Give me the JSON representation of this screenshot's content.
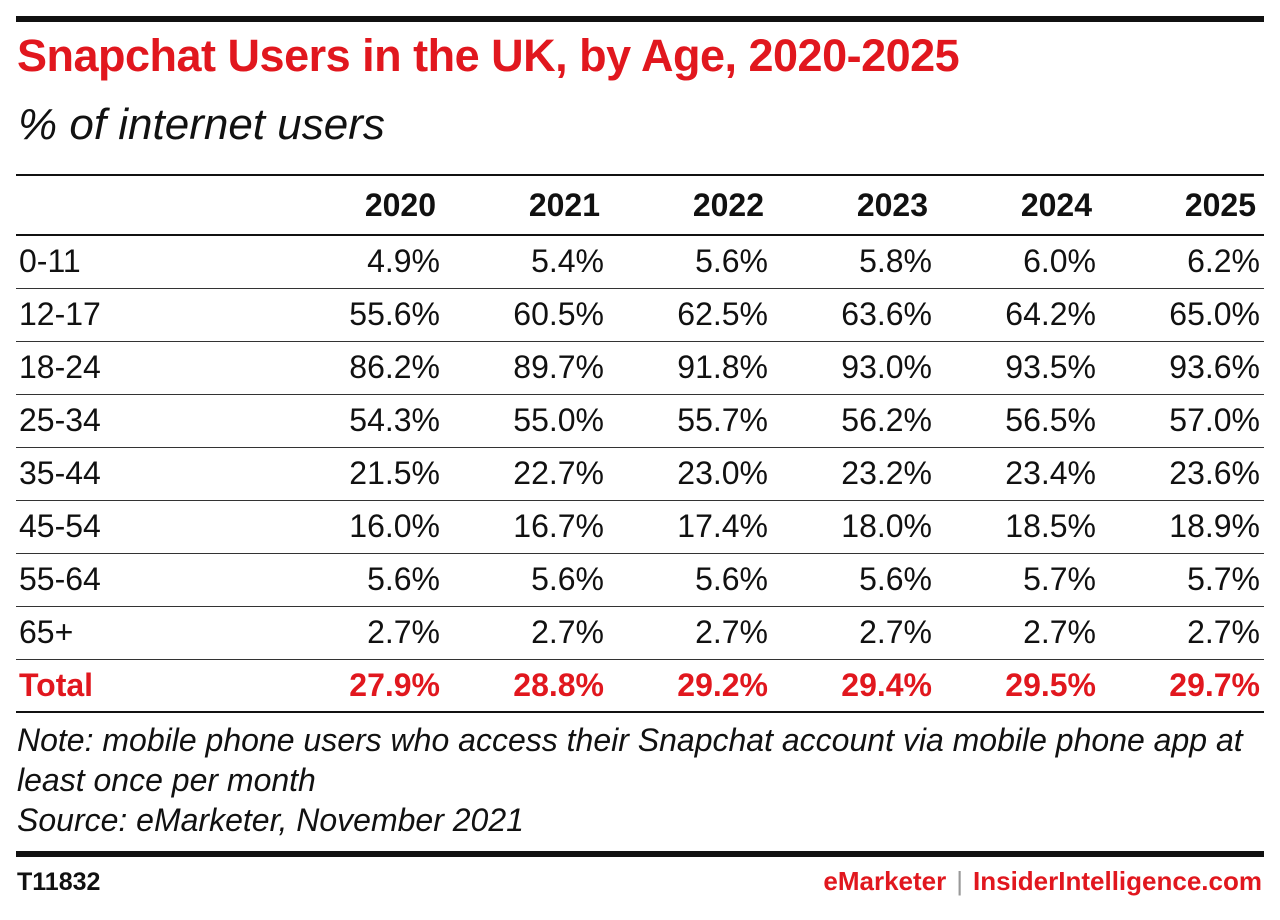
{
  "header": {
    "title": "Snapchat Users in the UK, by Age, 2020-2025",
    "subtitle": "% of internet users"
  },
  "chart_data": {
    "type": "table",
    "title": "Snapchat Users in the UK, by Age, 2020-2025",
    "subtitle": "% of internet users",
    "columns": [
      "2020",
      "2021",
      "2022",
      "2023",
      "2024",
      "2025"
    ],
    "rows": [
      {
        "label": "0-11",
        "values": [
          "4.9%",
          "5.4%",
          "5.6%",
          "5.8%",
          "6.0%",
          "6.2%"
        ]
      },
      {
        "label": "12-17",
        "values": [
          "55.6%",
          "60.5%",
          "62.5%",
          "63.6%",
          "64.2%",
          "65.0%"
        ]
      },
      {
        "label": "18-24",
        "values": [
          "86.2%",
          "89.7%",
          "91.8%",
          "93.0%",
          "93.5%",
          "93.6%"
        ]
      },
      {
        "label": "25-34",
        "values": [
          "54.3%",
          "55.0%",
          "55.7%",
          "56.2%",
          "56.5%",
          "57.0%"
        ]
      },
      {
        "label": "35-44",
        "values": [
          "21.5%",
          "22.7%",
          "23.0%",
          "23.2%",
          "23.4%",
          "23.6%"
        ]
      },
      {
        "label": "45-54",
        "values": [
          "16.0%",
          "16.7%",
          "17.4%",
          "18.0%",
          "18.5%",
          "18.9%"
        ]
      },
      {
        "label": "55-64",
        "values": [
          "5.6%",
          "5.6%",
          "5.6%",
          "5.6%",
          "5.7%",
          "5.7%"
        ]
      },
      {
        "label": "65+",
        "values": [
          "2.7%",
          "2.7%",
          "2.7%",
          "2.7%",
          "2.7%",
          "2.7%"
        ]
      }
    ],
    "total": {
      "label": "Total",
      "values": [
        "27.9%",
        "28.8%",
        "29.2%",
        "29.4%",
        "29.5%",
        "29.7%"
      ]
    }
  },
  "notes": {
    "note": "Note: mobile phone users who access their Snapchat account via mobile phone app at least once per month",
    "source": "Source: eMarketer, November 2021"
  },
  "footer": {
    "chart_id": "T11832",
    "brand_primary": "eMarketer",
    "brand_separator": "|",
    "brand_secondary": "InsiderIntelligence.com"
  },
  "colors": {
    "accent_red": "#e1171e",
    "text": "#111111"
  }
}
